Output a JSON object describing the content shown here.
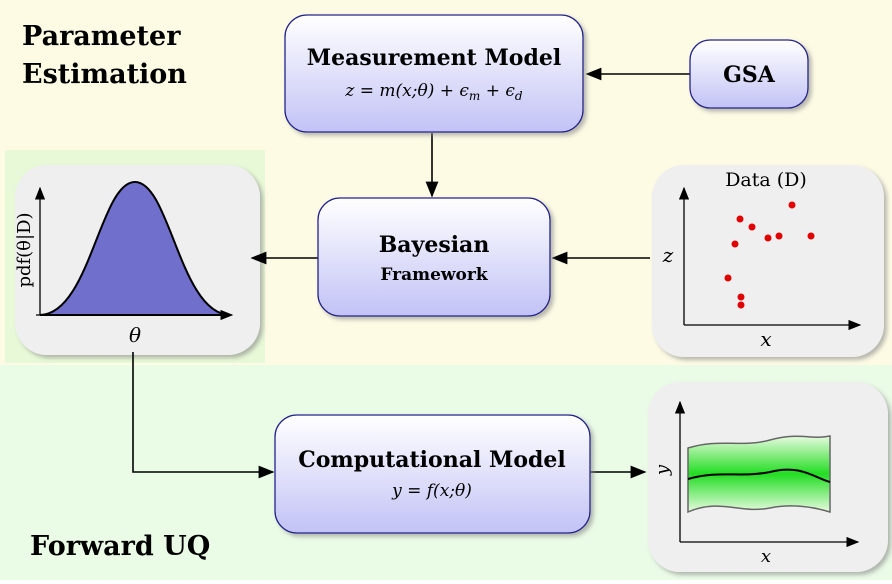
{
  "regions": {
    "parameter_estimation": [
      "Parameter",
      "Estimation"
    ],
    "forward_uq": "Forward UQ"
  },
  "nodes": {
    "measurement_model": {
      "title": "Measurement Model",
      "formula": [
        "z = m(x;θ) + ϵ",
        "m",
        " + ϵ",
        "d"
      ]
    },
    "gsa": {
      "title": "GSA"
    },
    "bayesian": {
      "title": [
        "Bayesian",
        "Framework"
      ]
    },
    "computational_model": {
      "title": "Computational Model",
      "formula": "y = f(x;θ)"
    }
  },
  "panels": {
    "posterior": {
      "y_label": "pdf(θ|D)",
      "x_label": "θ"
    },
    "data": {
      "title": "Data (D)",
      "y_label": "z",
      "x_label": "x"
    },
    "forward": {
      "y_label": "y",
      "x_label": "x"
    }
  }
}
